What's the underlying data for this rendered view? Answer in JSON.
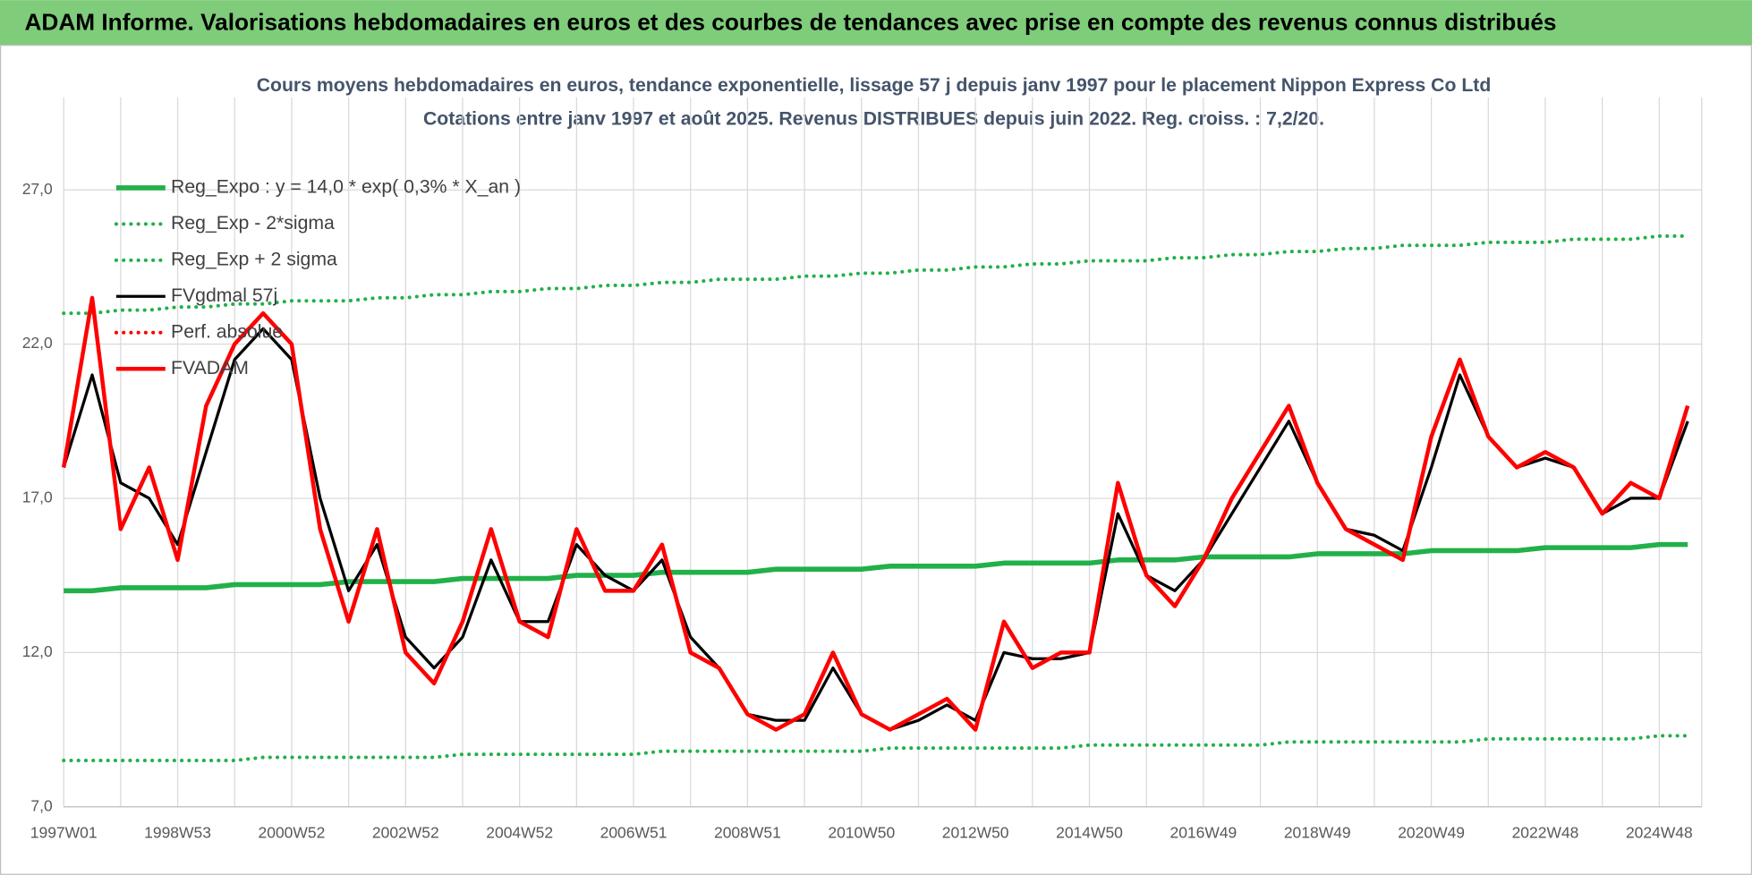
{
  "header": {
    "title": "ADAM Informe. Valorisations hebdomadaires en euros et des courbes de tendances avec prise en compte des revenus connus distribués"
  },
  "chart_data": {
    "type": "line",
    "title": "Cours moyens hebdomadaires en euros, tendance exponentielle, lissage 57 j depuis janv 1997 pour le placement Nippon Express Co Ltd",
    "subtitle": "Cotations entre janv 1997 et août 2025.  Revenus DISTRIBUES depuis juin 2022.  Reg. croiss. : 7,2/20.",
    "categories": [
      "1997W01",
      null,
      null,
      null,
      "1998W53",
      null,
      null,
      null,
      "2000W52",
      null,
      null,
      null,
      "2002W52",
      null,
      null,
      null,
      "2004W52",
      null,
      null,
      null,
      "2006W51",
      null,
      null,
      null,
      "2008W51",
      null,
      null,
      null,
      "2010W50",
      null,
      null,
      null,
      "2012W50",
      null,
      null,
      null,
      "2014W50",
      null,
      null,
      null,
      "2016W49",
      null,
      null,
      null,
      "2018W49",
      null,
      null,
      null,
      "2020W49",
      null,
      null,
      null,
      "2022W48",
      null,
      null,
      null,
      "2024W48",
      null
    ],
    "series": [
      {
        "name": "Reg_Expo : y = 14,0 * exp( 0,3% *  X_an )",
        "color": "#22b04a",
        "dash": "solid",
        "values": [
          14.0,
          14.0,
          14.1,
          14.1,
          14.1,
          14.1,
          14.2,
          14.2,
          14.2,
          14.2,
          14.3,
          14.3,
          14.3,
          14.3,
          14.4,
          14.4,
          14.4,
          14.4,
          14.5,
          14.5,
          14.5,
          14.6,
          14.6,
          14.6,
          14.6,
          14.7,
          14.7,
          14.7,
          14.7,
          14.8,
          14.8,
          14.8,
          14.8,
          14.9,
          14.9,
          14.9,
          14.9,
          15.0,
          15.0,
          15.0,
          15.1,
          15.1,
          15.1,
          15.1,
          15.2,
          15.2,
          15.2,
          15.2,
          15.3,
          15.3,
          15.3,
          15.3,
          15.4,
          15.4,
          15.4,
          15.4,
          15.5,
          15.5
        ]
      },
      {
        "name": "Reg_Exp - 2*sigma",
        "color": "#22b04a",
        "dash": "dotted",
        "values": [
          8.5,
          8.5,
          8.5,
          8.5,
          8.5,
          8.5,
          8.5,
          8.6,
          8.6,
          8.6,
          8.6,
          8.6,
          8.6,
          8.6,
          8.7,
          8.7,
          8.7,
          8.7,
          8.7,
          8.7,
          8.7,
          8.8,
          8.8,
          8.8,
          8.8,
          8.8,
          8.8,
          8.8,
          8.8,
          8.9,
          8.9,
          8.9,
          8.9,
          8.9,
          8.9,
          8.9,
          9.0,
          9.0,
          9.0,
          9.0,
          9.0,
          9.0,
          9.0,
          9.1,
          9.1,
          9.1,
          9.1,
          9.1,
          9.1,
          9.1,
          9.2,
          9.2,
          9.2,
          9.2,
          9.2,
          9.2,
          9.3,
          9.3
        ]
      },
      {
        "name": "Reg_Exp + 2 sigma",
        "color": "#22b04a",
        "dash": "dotted",
        "values": [
          23.0,
          23.0,
          23.1,
          23.1,
          23.2,
          23.2,
          23.3,
          23.3,
          23.4,
          23.4,
          23.4,
          23.5,
          23.5,
          23.6,
          23.6,
          23.7,
          23.7,
          23.8,
          23.8,
          23.9,
          23.9,
          24.0,
          24.0,
          24.1,
          24.1,
          24.1,
          24.2,
          24.2,
          24.3,
          24.3,
          24.4,
          24.4,
          24.5,
          24.5,
          24.6,
          24.6,
          24.7,
          24.7,
          24.7,
          24.8,
          24.8,
          24.9,
          24.9,
          25.0,
          25.0,
          25.1,
          25.1,
          25.2,
          25.2,
          25.2,
          25.3,
          25.3,
          25.3,
          25.4,
          25.4,
          25.4,
          25.5,
          25.5
        ]
      },
      {
        "name": "FVgdmal 57j",
        "color": "#000000",
        "dash": "solid",
        "values": [
          18,
          21,
          17.5,
          17,
          15.5,
          18.5,
          21.5,
          22.5,
          21.5,
          17,
          14,
          15.5,
          12.5,
          11.5,
          12.5,
          15,
          13,
          13,
          15.5,
          14.5,
          14,
          15,
          12.5,
          11.5,
          10,
          9.8,
          9.8,
          11.5,
          10,
          9.5,
          9.8,
          10.3,
          9.8,
          12,
          11.8,
          11.8,
          12,
          16.5,
          14.5,
          14,
          15,
          16.5,
          18,
          19.5,
          17.5,
          16,
          15.8,
          15.3,
          18,
          21,
          19,
          18,
          18.3,
          18,
          16.5,
          17,
          17,
          19.5
        ]
      },
      {
        "name": "Perf. absolue",
        "color": "#ff0000",
        "dash": "dotted",
        "values": [
          null,
          null,
          null,
          null,
          null,
          null,
          null,
          null,
          null,
          null,
          null,
          null,
          null,
          null,
          null,
          null,
          null,
          null,
          null,
          null,
          null,
          null,
          null,
          null,
          null,
          null,
          null,
          null,
          null,
          null,
          null,
          null,
          null,
          null,
          null,
          null,
          null,
          null,
          null,
          null,
          null,
          null,
          null,
          null,
          null,
          null,
          null,
          null,
          null,
          null,
          null,
          null,
          null,
          null,
          null,
          null,
          null,
          null
        ]
      },
      {
        "name": "FVADAM",
        "color": "#ff0000",
        "dash": "solid",
        "values": [
          18,
          23.5,
          16,
          18,
          15,
          20,
          22,
          23,
          22,
          16,
          13,
          16,
          12,
          11,
          13,
          16,
          13,
          12.5,
          16,
          14,
          14,
          15.5,
          12,
          11.5,
          10,
          9.5,
          10,
          12,
          10,
          9.5,
          10,
          10.5,
          9.5,
          13,
          11.5,
          12,
          12,
          17.5,
          14.5,
          13.5,
          15,
          17,
          18.5,
          20,
          17.5,
          16,
          15.5,
          15,
          19,
          21.5,
          19,
          18,
          18.5,
          18,
          16.5,
          17.5,
          17,
          20
        ]
      }
    ],
    "ylim": [
      7,
      30
    ],
    "yticks": [
      {
        "value": 7,
        "label": "7,0"
      },
      {
        "value": 12,
        "label": "12,0"
      },
      {
        "value": 17,
        "label": "17,0"
      },
      {
        "value": 22,
        "label": "22,0"
      },
      {
        "value": 27,
        "label": "27,0"
      }
    ],
    "grid": true,
    "legend": "top-left"
  }
}
